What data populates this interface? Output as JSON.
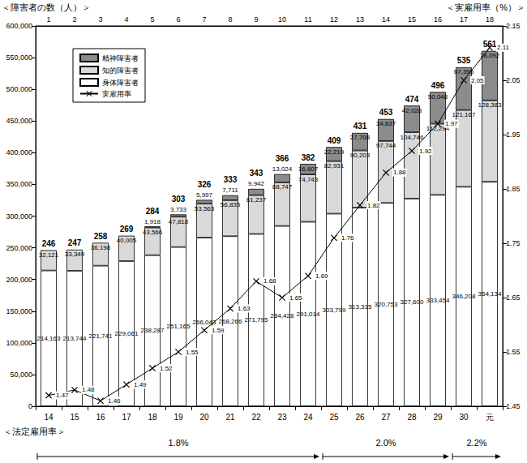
{
  "chart_data": {
    "type": "bar",
    "stacked": true,
    "data_labels": true,
    "grid": false,
    "legend": "upper left",
    "y_label": "＜障害者の数（人）＞",
    "y2_label": "＜実雇用率（%）＞",
    "categories": [
      "14",
      "15",
      "16",
      "17",
      "18",
      "19",
      "20",
      "21",
      "22",
      "23",
      "24",
      "25",
      "26",
      "27",
      "28",
      "29",
      "30",
      "元"
    ],
    "top_categories": [
      "1",
      "2",
      "3",
      "4",
      "5",
      "6",
      "7",
      "8",
      "9",
      "10",
      "11",
      "12",
      "13",
      "14",
      "15",
      "16",
      "17",
      "18"
    ],
    "ylim": [
      0,
      600000
    ],
    "yticks": [
      0,
      {
        "value": 50000,
        "label": "50,000"
      },
      {
        "value": 100000,
        "label": "100,000"
      },
      {
        "value": 150000,
        "label": "150,000"
      },
      {
        "value": 200000,
        "label": "200,000"
      },
      {
        "value": 250000,
        "label": "250,000"
      },
      {
        "value": 300000,
        "label": "300,000"
      },
      {
        "value": 350000,
        "label": "350,000"
      },
      {
        "value": 400000,
        "label": "400,000"
      },
      {
        "value": 450000,
        "label": "450,000"
      },
      {
        "value": 500000,
        "label": "500,000"
      },
      {
        "value": 550000,
        "label": "550,000"
      },
      {
        "value": 600000,
        "label": "600,000"
      }
    ],
    "y2lim": [
      1.45,
      2.15
    ],
    "y2ticks": [
      1.45,
      1.55,
      1.65,
      1.75,
      1.85,
      1.95,
      2.05,
      2.15
    ],
    "series": [
      {
        "name": "身体障害者",
        "type": "bar",
        "color": "#ffffff",
        "values": [
          214163,
          213744,
          221741,
          229061,
          238287,
          251165,
          266043,
          268266,
          271795,
          284428,
          291014,
          303799,
          313315,
          320753,
          327600,
          333454,
          346208,
          354134
        ],
        "value_labels": [
          "214,163",
          "213,744",
          "221,741",
          "229,061",
          "238,287",
          "251,165",
          "266,043",
          "268,266",
          "271,795",
          "284,428",
          "291,014",
          "303,799",
          "313,315",
          "320,753",
          "327,600",
          "333,454",
          "346,208",
          "354,134"
        ]
      },
      {
        "name": "知的障害者",
        "type": "bar",
        "color": "#d9d9d9",
        "values": [
          32121,
          33349,
          36198,
          40005,
          43566,
          47818,
          53563,
          56835,
          61237,
          68747,
          74743,
          82931,
          90203,
          97744,
          104746,
          112294,
          121167,
          128383
        ],
        "value_labels": [
          "32,121",
          "33,349",
          "36,198",
          "40,005",
          "43,566",
          "47,818",
          "53,563",
          "56,835",
          "61,237",
          "68,747",
          "74,743",
          "82,931",
          "90,203",
          "97,744",
          "104,746",
          "112,294",
          "121,167",
          "128,383"
        ]
      },
      {
        "name": "精神障害者",
        "type": "bar",
        "color": "#8c8c8c",
        "values": [
          null,
          null,
          null,
          null,
          1918,
          3733,
          5997,
          7711,
          9942,
          13024,
          16607,
          22219,
          27708,
          34637,
          42028,
          50048,
          67395,
          78092
        ],
        "value_labels": [
          null,
          null,
          null,
          null,
          "1,918",
          "3,733",
          "5,997",
          "7,711",
          "9,942",
          "13,024",
          "16,607",
          "22,219",
          "27,708",
          "34,637",
          "42,028",
          "50,048",
          "67,395",
          "78,092"
        ]
      },
      {
        "name": "実雇用率",
        "type": "line",
        "axis": "y2",
        "color": "#000000",
        "marker": "x",
        "values": [
          1.47,
          1.48,
          1.46,
          1.49,
          1.52,
          1.55,
          1.59,
          1.63,
          1.68,
          1.65,
          1.69,
          1.76,
          1.82,
          1.88,
          1.92,
          1.97,
          2.05,
          2.11
        ]
      }
    ],
    "totals": [
      246,
      247,
      258,
      269,
      284,
      303,
      326,
      333,
      343,
      366,
      382,
      409,
      431,
      453,
      474,
      496,
      535,
      561
    ],
    "legal_rate_label": "＜法定雇用率＞",
    "legal_rate_periods": [
      {
        "label": "1.8%",
        "from": "14",
        "to": "24"
      },
      {
        "label": "2.0%",
        "from": "25",
        "to": "29"
      },
      {
        "label": "2.2%",
        "from": "30",
        "to": "元"
      }
    ]
  }
}
